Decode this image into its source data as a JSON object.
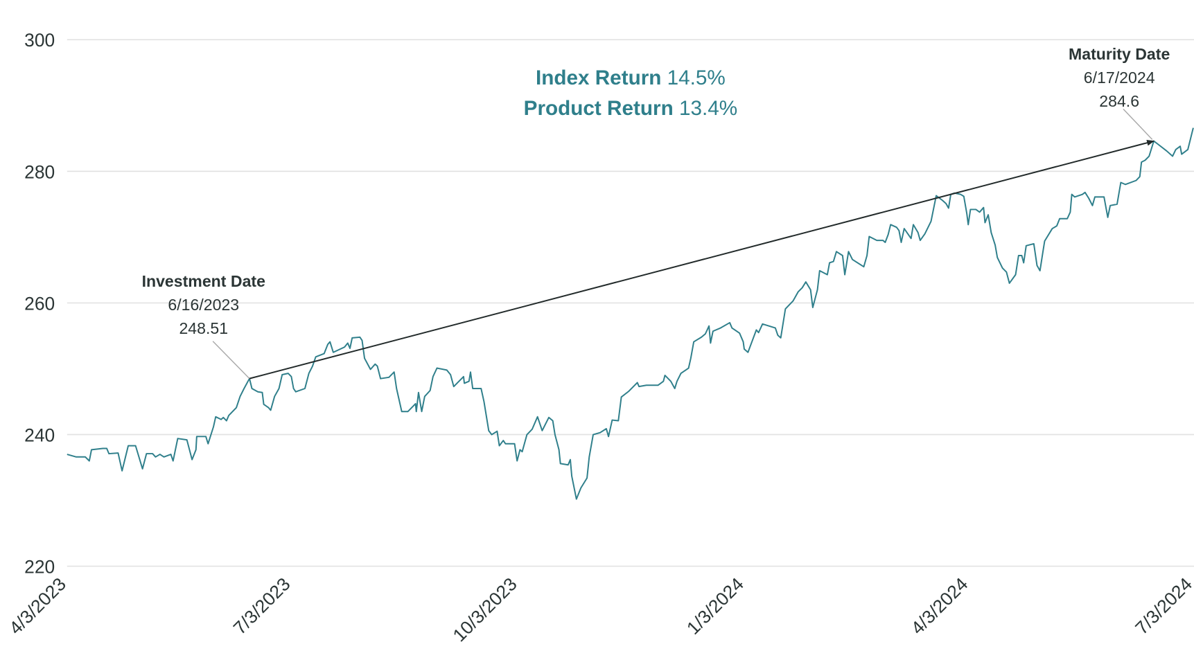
{
  "chart_data": {
    "type": "line",
    "title": "",
    "xlabel": "",
    "ylabel": "",
    "ylim": [
      220,
      300
    ],
    "y_ticks": [
      220,
      240,
      260,
      280,
      300
    ],
    "grid": "horizontal",
    "x_start_date": "4/3/2023",
    "x_unit": "days since 4/3/2023",
    "xlim": [
      0,
      457
    ],
    "x_ticks": [
      {
        "label": "4/3/2023",
        "day": 0
      },
      {
        "label": "7/3/2023",
        "day": 91
      },
      {
        "label": "10/3/2023",
        "day": 183
      },
      {
        "label": "1/3/2024",
        "day": 275
      },
      {
        "label": "4/3/2024",
        "day": 366
      },
      {
        "label": "7/3/2024",
        "day": 457
      }
    ],
    "colors": {
      "series": "#2f7f8b",
      "arrow": "#222a2a",
      "leader": "#a9a9a9",
      "grid": "#e2e2e2",
      "text": "#2b3535",
      "returns": "#2f7f8b"
    },
    "series": [
      {
        "name": "Index",
        "x": [
          0,
          3.7,
          7.4,
          9,
          9.9,
          14.5,
          16.1,
          17,
          20.7,
          22.3,
          24.8,
          27.8,
          30.6,
          32.2,
          34.7,
          35.9,
          37.7,
          39.3,
          42.1,
          43,
          44.9,
          48.6,
          50.7,
          52.3,
          52.6,
          56.3,
          57.2,
          59.4,
          60.3,
          62.5,
          63.4,
          64.7,
          65.6,
          68.7,
          70.2,
          71.8,
          74,
          75,
          77.4,
          79.2,
          79.8,
          81.7,
          82.6,
          84.2,
          86,
          87.3,
          89.7,
          91,
          91.9,
          92.8,
          96.5,
          98.1,
          99.6,
          100.9,
          104.3,
          105.8,
          106.7,
          108,
          112.6,
          113.9,
          114.8,
          115.7,
          118.8,
          119.7,
          120.7,
          123.1,
          125,
          125.9,
          127.2,
          130.6,
          132.7,
          133.7,
          135.8,
          138.3,
          141.4,
          141.7,
          142.6,
          143.9,
          145.1,
          147.3,
          148.5,
          150.1,
          154.1,
          155.6,
          156.9,
          160.9,
          161.2,
          163.1,
          163.7,
          164.6,
          168,
          169.2,
          171.1,
          172.3,
          174.5,
          175.4,
          177,
          177.9,
          181.6,
          182.6,
          183.8,
          184.7,
          186.6,
          188.7,
          190.9,
          192.8,
          195.5,
          197.1,
          198,
          199.6,
          200.2,
          203.3,
          204.2,
          204.8,
          206.7,
          208.5,
          211,
          211.9,
          213.5,
          216.3,
          218.8,
          219.7,
          221.2,
          223.7,
          224.9,
          228,
          231.4,
          232.1,
          235.1,
          239.8,
          242,
          242.6,
          245,
          246.6,
          247.5,
          249.1,
          252.2,
          253.1,
          254.3,
          257.4,
          259,
          260.5,
          261.1,
          262.1,
          265.2,
          268.9,
          269.8,
          272.9,
          274.4,
          274.8,
          276.3,
          278.5,
          279.7,
          280.6,
          282.2,
          287.4,
          288.4,
          289.6,
          291.5,
          294.6,
          296.7,
          298.3,
          299.8,
          301.7,
          302.6,
          304.5,
          305.4,
          308.5,
          309.4,
          311,
          312.2,
          314.7,
          315.6,
          317.1,
          318.7,
          323.3,
          324.6,
          325.5,
          328.6,
          331.1,
          332,
          333.2,
          334.2,
          336.6,
          337.6,
          338.5,
          339.7,
          342.5,
          343.4,
          345.3,
          346.2,
          348.1,
          350.6,
          352.7,
          355.2,
          356.7,
          357.7,
          358.6,
          360.1,
          362.6,
          363.9,
          365.1,
          365.7,
          366.6,
          368.8,
          370.3,
          371.9,
          372.5,
          373.8,
          375,
          376.6,
          377.5,
          379.6,
          381.2,
          382.4,
          384.9,
          386.1,
          387.4,
          388.2,
          389.2,
          392.3,
          393.6,
          394.8,
          396,
          396.7,
          399.8,
          401.6,
          402.8,
          405.9,
          407.1,
          407.7,
          408.9,
          412,
          413.1,
          414.6,
          416.1,
          417.1,
          420.8,
          422.3,
          423.3,
          426.1,
          427.6,
          429.5,
          433.8,
          435.3,
          436,
          437.5,
          439.1,
          441,
          443.1,
          446.2,
          448.6,
          449.9,
          451.7,
          452.3,
          454.8,
          457
        ],
        "values": [
          237.0,
          236.6,
          236.6,
          236.0,
          237.7,
          237.9,
          237.9,
          237.1,
          237.2,
          234.5,
          238.3,
          238.3,
          234.8,
          237.1,
          237.1,
          236.6,
          237.0,
          236.6,
          237.0,
          236.0,
          239.4,
          239.2,
          236.2,
          237.7,
          239.7,
          239.7,
          238.6,
          241.2,
          242.7,
          242.3,
          242.6,
          242.1,
          242.9,
          244.1,
          245.8,
          247.0,
          248.51,
          247.0,
          246.5,
          246.4,
          244.6,
          244.1,
          243.7,
          245.8,
          247.0,
          249.1,
          249.3,
          248.8,
          247.0,
          246.5,
          247.0,
          249.3,
          250.4,
          251.8,
          252.3,
          253.7,
          254.1,
          252.5,
          253.3,
          253.9,
          253.1,
          254.7,
          254.8,
          254.3,
          251.6,
          249.9,
          250.7,
          250.4,
          248.5,
          248.7,
          249.5,
          247.0,
          243.5,
          243.5,
          244.7,
          243.5,
          246.4,
          243.5,
          245.8,
          246.7,
          248.8,
          250.1,
          249.8,
          249.1,
          247.3,
          248.8,
          247.8,
          248.1,
          249.5,
          247.0,
          247.0,
          245.0,
          240.6,
          240.0,
          240.5,
          238.3,
          239.1,
          238.6,
          238.6,
          236.0,
          237.7,
          237.4,
          240.0,
          240.8,
          242.7,
          240.6,
          242.6,
          242.1,
          240.0,
          237.7,
          235.6,
          235.4,
          236.2,
          233.7,
          230.2,
          231.9,
          233.4,
          236.6,
          240.0,
          240.3,
          240.9,
          239.7,
          242.2,
          242.1,
          245.7,
          246.6,
          247.9,
          247.3,
          247.5,
          247.5,
          248.1,
          249.0,
          248.1,
          247.0,
          248.1,
          249.3,
          250.1,
          251.6,
          254.1,
          254.8,
          255.3,
          256.5,
          253.9,
          255.7,
          256.2,
          257.0,
          256.2,
          255.4,
          254.1,
          253.0,
          252.5,
          254.7,
          255.9,
          255.5,
          256.8,
          256.2,
          255.1,
          254.7,
          259.1,
          260.3,
          261.7,
          262.3,
          263.2,
          262.0,
          259.3,
          262.0,
          264.9,
          264.3,
          266.1,
          266.3,
          267.8,
          267.2,
          264.3,
          267.8,
          266.6,
          265.5,
          267.2,
          270.1,
          269.5,
          269.5,
          269.2,
          270.4,
          271.9,
          271.5,
          271.0,
          269.2,
          271.3,
          269.8,
          271.9,
          270.7,
          269.5,
          270.5,
          272.4,
          276.3,
          275.6,
          275.1,
          274.4,
          276.5,
          276.7,
          276.5,
          276.2,
          273.6,
          271.9,
          274.2,
          274.2,
          273.8,
          274.5,
          272.2,
          273.4,
          270.7,
          268.8,
          266.9,
          265.3,
          264.7,
          263.0,
          264.3,
          267.2,
          267.2,
          266.1,
          268.7,
          269.0,
          265.7,
          264.9,
          267.8,
          269.4,
          271.3,
          271.7,
          272.8,
          272.8,
          273.8,
          276.5,
          276.1,
          276.5,
          276.8,
          275.9,
          274.8,
          276.1,
          276.1,
          273.0,
          274.8,
          275.0,
          278.3,
          278.0,
          278.6,
          279.2,
          281.4,
          281.7,
          282.3,
          284.6,
          284.0,
          283.1,
          282.3,
          283.3,
          283.8,
          282.6,
          283.3,
          286.6
        ]
      }
    ],
    "annotations": {
      "investment": {
        "title": "Investment Date",
        "date": "6/16/2023",
        "value_label": "248.51",
        "day": 74,
        "value": 248.51
      },
      "maturity": {
        "title": "Maturity Date",
        "date": "6/17/2024",
        "value_label": "284.6",
        "day": 441,
        "value": 284.6
      },
      "index_return": {
        "label": "Index Return",
        "value": "14.5%"
      },
      "product_return": {
        "label": "Product Return",
        "value": "13.4%"
      }
    }
  }
}
